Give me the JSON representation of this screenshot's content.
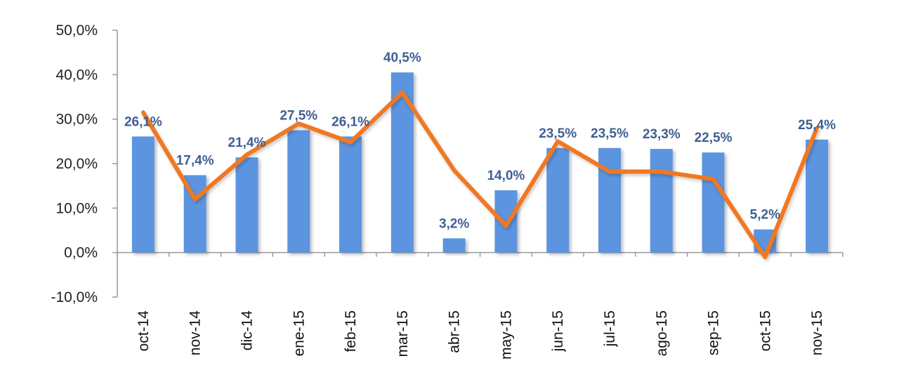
{
  "chart_data": {
    "type": "bar",
    "title": "",
    "xlabel": "",
    "ylabel": "",
    "ylim": [
      -10,
      50
    ],
    "yticks": [
      -10,
      0,
      10,
      20,
      30,
      40,
      50
    ],
    "ytick_labels": [
      "-10,0%",
      "0,0%",
      "10,0%",
      "20,0%",
      "30,0%",
      "40,0%",
      "50,0%"
    ],
    "categories": [
      "oct-14",
      "nov-14",
      "dic-14",
      "ene-15",
      "feb-15",
      "mar-15",
      "abr-15",
      "may-15",
      "jun-15",
      "jul-15",
      "ago-15",
      "sep-15",
      "oct-15",
      "nov-15"
    ],
    "series": [
      {
        "name": "bars",
        "type": "bar",
        "color": "#5b94e0",
        "values": [
          26.1,
          17.4,
          21.4,
          27.5,
          26.1,
          40.5,
          3.2,
          14.0,
          23.5,
          23.5,
          23.3,
          22.5,
          5.2,
          25.4
        ],
        "labels": [
          "26,1%",
          "17,4%",
          "21,4%",
          "27,5%",
          "26,1%",
          "40,5%",
          "3,2%",
          "14,0%",
          "23,5%",
          "23,5%",
          "23,3%",
          "22,5%",
          "5,2%",
          "25,4%"
        ]
      },
      {
        "name": "line",
        "type": "line",
        "color": "#f07820",
        "values": [
          31.5,
          12.0,
          22.0,
          29.0,
          24.8,
          36.0,
          18.5,
          6.0,
          25.0,
          18.2,
          18.2,
          16.5,
          -1.0,
          28.0
        ]
      }
    ],
    "colors": {
      "negative_tick": "#e02020",
      "tick": "#222222",
      "label": "#3f5f93",
      "axis": "#9a9a9a"
    },
    "grid": false,
    "legend": "none"
  }
}
